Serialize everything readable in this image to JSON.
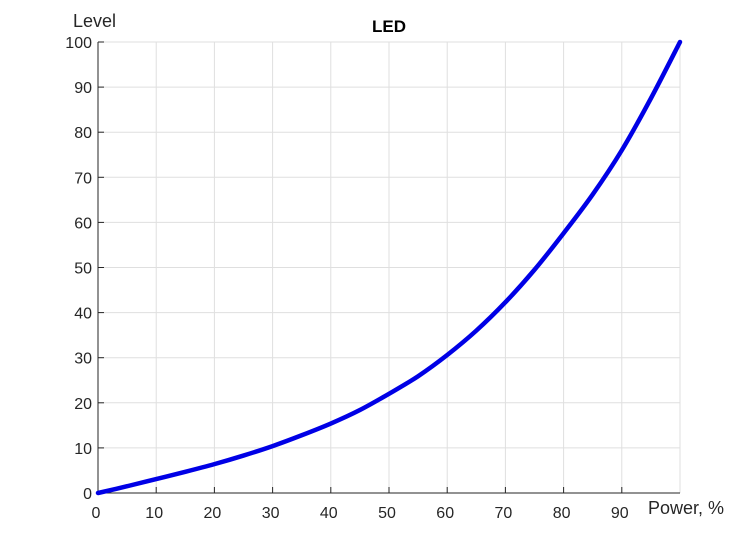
{
  "chart_data": {
    "type": "line",
    "title": "LED",
    "xlabel": "Power, %",
    "ylabel": "Level",
    "xlim": [
      0,
      100
    ],
    "ylim": [
      0,
      100
    ],
    "xticks": [
      0,
      10,
      20,
      30,
      40,
      50,
      60,
      70,
      80,
      90
    ],
    "yticks": [
      0,
      10,
      20,
      30,
      40,
      50,
      60,
      70,
      80,
      90,
      100
    ],
    "grid": true,
    "series": [
      {
        "color": "#0000e6",
        "x": [
          0,
          5,
          10,
          15,
          20,
          25,
          30,
          35,
          40,
          45,
          50,
          55,
          60,
          65,
          70,
          75,
          80,
          85,
          90,
          95,
          100
        ],
        "y": [
          0,
          1.5,
          3.1,
          4.7,
          6.4,
          8.3,
          10.4,
          12.8,
          15.4,
          18.4,
          22.0,
          25.9,
          30.6,
          36.0,
          42.3,
          49.5,
          57.6,
          66.2,
          76.0,
          87.5,
          100
        ]
      }
    ]
  }
}
